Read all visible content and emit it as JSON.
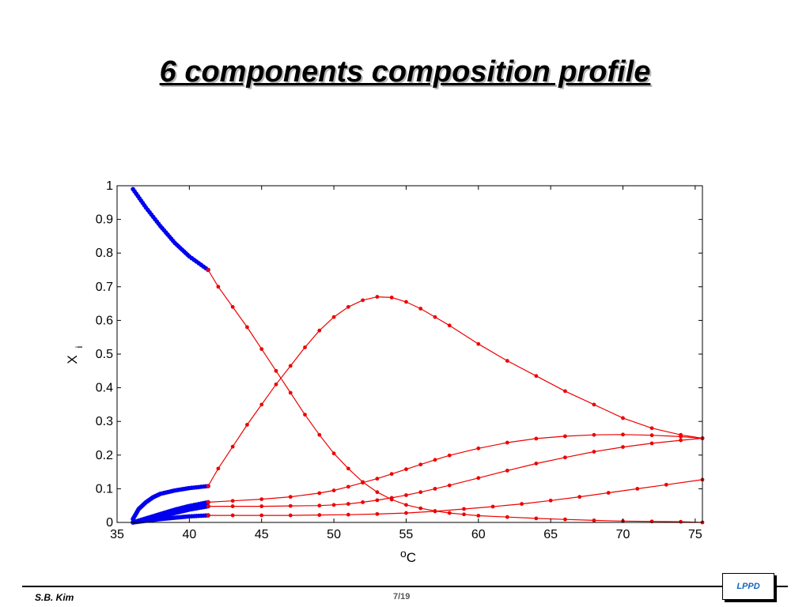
{
  "slide": {
    "title": "6 components composition profile",
    "footer_author": "S.B. Kim",
    "footer_page": "7/19",
    "logo_text": "LPPD"
  },
  "colors": {
    "blue_series": "#0000ee",
    "red_series": "#ee0000",
    "axis": "#000000"
  },
  "chart_data": {
    "type": "line",
    "title": "",
    "xlabel": "°C",
    "ylabel": "X_i",
    "xlim": [
      35,
      75.5
    ],
    "ylim": [
      0,
      1
    ],
    "xticks": [
      35,
      40,
      45,
      50,
      55,
      60,
      65,
      70,
      75
    ],
    "yticks": [
      0,
      0.1,
      0.2,
      0.3,
      0.4,
      0.5,
      0.6,
      0.7,
      0.8,
      0.9,
      1
    ],
    "ytick_labels": [
      "0",
      "0.1",
      "0.2",
      "0.3",
      "0.4",
      "0.5",
      "0.6",
      "0.7",
      "0.8",
      "0.9",
      "1"
    ],
    "grid": false,
    "legend": "none",
    "series": [
      {
        "color": "blue",
        "x": [
          36.1,
          37,
          38,
          39,
          40,
          41.3
        ],
        "y": [
          0.99,
          0.935,
          0.88,
          0.83,
          0.79,
          0.75
        ]
      },
      {
        "color": "blue",
        "x": [
          36.1,
          36.5,
          37,
          37.5,
          38,
          39,
          40,
          41.3
        ],
        "y": [
          0.01,
          0.04,
          0.06,
          0.075,
          0.085,
          0.095,
          0.102,
          0.108
        ]
      },
      {
        "color": "blue",
        "x": [
          36.1,
          37,
          38,
          39,
          40,
          41.3
        ],
        "y": [
          0,
          0.012,
          0.025,
          0.038,
          0.049,
          0.06
        ]
      },
      {
        "color": "blue",
        "x": [
          36.1,
          37,
          38,
          39,
          40,
          41.3
        ],
        "y": [
          0,
          0.008,
          0.018,
          0.028,
          0.038,
          0.048
        ]
      },
      {
        "color": "blue",
        "x": [
          36.1,
          37,
          38,
          39,
          40,
          41.3
        ],
        "y": [
          0,
          0.005,
          0.01,
          0.014,
          0.018,
          0.021
        ]
      },
      {
        "color": "red",
        "x": [
          41.3,
          42,
          43,
          44,
          45,
          46,
          47,
          48,
          49,
          50,
          51,
          52,
          53,
          54,
          55,
          56,
          57,
          58,
          59,
          60,
          62,
          64,
          66,
          68,
          70,
          72,
          74,
          75.5
        ],
        "y": [
          0.75,
          0.7,
          0.64,
          0.58,
          0.515,
          0.45,
          0.385,
          0.32,
          0.26,
          0.205,
          0.16,
          0.12,
          0.09,
          0.068,
          0.052,
          0.042,
          0.034,
          0.028,
          0.024,
          0.02,
          0.016,
          0.012,
          0.009,
          0.006,
          0.004,
          0.003,
          0.002,
          0.0
        ]
      },
      {
        "color": "red",
        "x": [
          41.3,
          42,
          43,
          44,
          45,
          46,
          47,
          48,
          49,
          50,
          51,
          52,
          53,
          54,
          55,
          56,
          57,
          58,
          60,
          62,
          64,
          66,
          68,
          70,
          72,
          74,
          75.5
        ],
        "y": [
          0.108,
          0.16,
          0.225,
          0.29,
          0.35,
          0.41,
          0.465,
          0.52,
          0.57,
          0.61,
          0.64,
          0.66,
          0.67,
          0.668,
          0.655,
          0.635,
          0.61,
          0.585,
          0.53,
          0.48,
          0.435,
          0.39,
          0.35,
          0.31,
          0.28,
          0.26,
          0.25
        ]
      },
      {
        "color": "red",
        "x": [
          41.3,
          43,
          45,
          47,
          49,
          50,
          51,
          52,
          53,
          54,
          55,
          56,
          57,
          58,
          60,
          62,
          64,
          66,
          68,
          70,
          72,
          74,
          75.5
        ],
        "y": [
          0.06,
          0.064,
          0.069,
          0.076,
          0.087,
          0.095,
          0.106,
          0.118,
          0.13,
          0.144,
          0.158,
          0.172,
          0.186,
          0.199,
          0.22,
          0.237,
          0.249,
          0.256,
          0.26,
          0.261,
          0.259,
          0.255,
          0.25
        ]
      },
      {
        "color": "red",
        "x": [
          41.3,
          43,
          45,
          47,
          49,
          50,
          51,
          52,
          53,
          54,
          55,
          56,
          57,
          58,
          60,
          62,
          64,
          66,
          68,
          70,
          72,
          74,
          75.5
        ],
        "y": [
          0.048,
          0.048,
          0.048,
          0.049,
          0.05,
          0.052,
          0.055,
          0.06,
          0.066,
          0.073,
          0.081,
          0.09,
          0.1,
          0.11,
          0.132,
          0.154,
          0.175,
          0.193,
          0.21,
          0.224,
          0.235,
          0.244,
          0.25
        ]
      },
      {
        "color": "red",
        "x": [
          41.3,
          43,
          45,
          47,
          49,
          51,
          53,
          55,
          57,
          59,
          61,
          63,
          65,
          67,
          69,
          71,
          73,
          75.5
        ],
        "y": [
          0.021,
          0.021,
          0.021,
          0.021,
          0.022,
          0.023,
          0.025,
          0.028,
          0.033,
          0.04,
          0.047,
          0.055,
          0.065,
          0.076,
          0.088,
          0.1,
          0.112,
          0.127
        ]
      }
    ]
  }
}
